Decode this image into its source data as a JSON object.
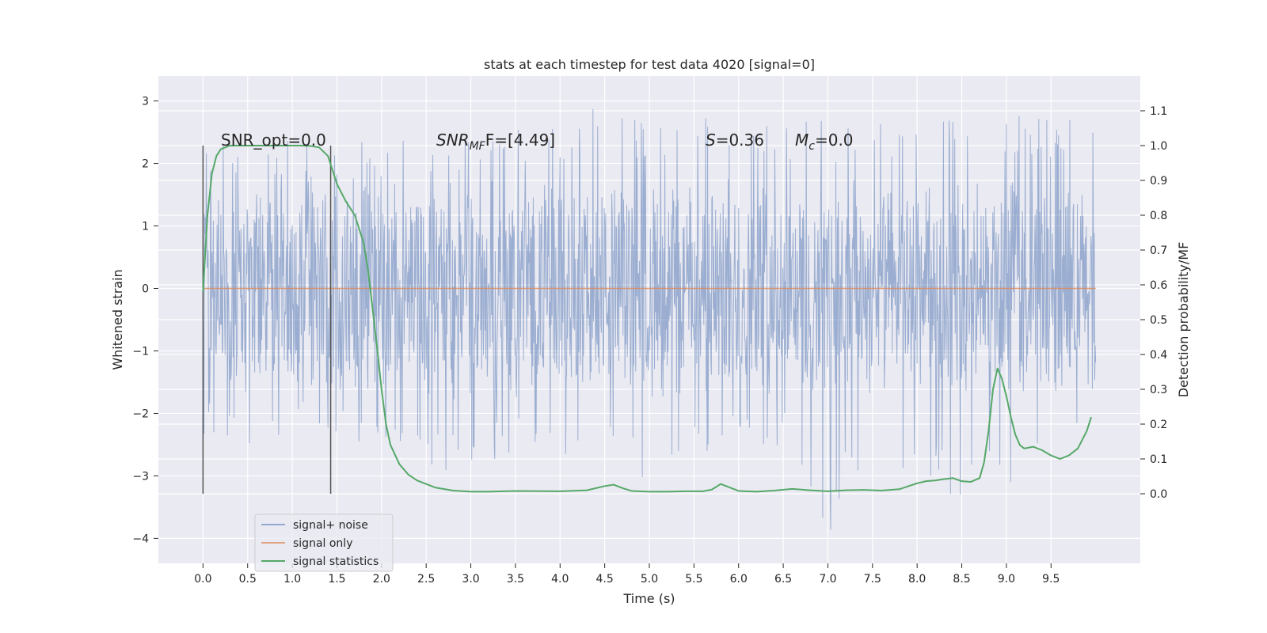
{
  "chart_data": {
    "type": "line",
    "title": "stats at each timestep for test data 4020 [signal=0]",
    "xlabel": "Time (s)",
    "ylabel": "Whitened strain",
    "y2label": "Detection probability/MF",
    "xlim": [
      -0.5,
      10.5
    ],
    "ylim": [
      -4.4,
      3.4
    ],
    "y2lim": [
      -0.2,
      1.2
    ],
    "x_ticks": [
      0.0,
      0.5,
      1.0,
      1.5,
      2.0,
      2.5,
      3.0,
      3.5,
      4.0,
      4.5,
      5.0,
      5.5,
      6.0,
      6.5,
      7.0,
      7.5,
      8.0,
      8.5,
      9.0,
      9.5
    ],
    "x_tick_labels": [
      "0.0",
      "0.5",
      "1.0",
      "1.5",
      "2.0",
      "2.5",
      "3.0",
      "3.5",
      "4.0",
      "4.5",
      "5.0",
      "5.5",
      "6.0",
      "6.5",
      "7.0",
      "7.5",
      "8.0",
      "8.5",
      "9.0",
      "9.5"
    ],
    "y_ticks": [
      3,
      2,
      1,
      0,
      -1,
      -2,
      -3,
      -4
    ],
    "y_tick_labels": [
      "3",
      "2",
      "1",
      "0",
      "−1",
      "−2",
      "−3",
      "−4"
    ],
    "y2_ticks": [
      1.1,
      1.0,
      0.9,
      0.8,
      0.7,
      0.6,
      0.5,
      0.4,
      0.3,
      0.2,
      0.1,
      0.0
    ],
    "y2_tick_labels": [
      "1.1",
      "1.0",
      "0.9",
      "0.8",
      "0.7",
      "0.6",
      "0.5",
      "0.4",
      "0.3",
      "0.2",
      "0.1",
      "0.0"
    ],
    "grid": true,
    "legend_position": "lower-left",
    "annotations": {
      "snr_opt": "SNR_opt=0.0",
      "snr_mf_main": "SNR",
      "snr_mf_sub": "MF",
      "snr_mf_rest": "F=[4.49]",
      "s_main": "S",
      "s_rest": "=0.36",
      "mc_main": "M",
      "mc_sub": "c",
      "mc_rest": "=0.0"
    },
    "markers": {
      "x": [
        0.0,
        1.43
      ],
      "y2_range": [
        0.0,
        1.0
      ]
    },
    "series": [
      {
        "name": "signal+ noise",
        "color": "#4c72b0",
        "x_range": [
          0.0,
          10.0
        ],
        "envelope": {
          "x": [
            0.0,
            0.5,
            1.0,
            1.5,
            2.0,
            2.5,
            3.0,
            3.5,
            4.0,
            4.5,
            5.0,
            5.5,
            6.0,
            6.5,
            7.0,
            7.5,
            8.0,
            8.5,
            9.0,
            9.5,
            10.0
          ],
          "upper": [
            2.3,
            2.3,
            2.4,
            2.3,
            2.4,
            2.5,
            2.5,
            2.6,
            2.6,
            3.1,
            2.6,
            2.7,
            3.0,
            2.7,
            2.7,
            2.6,
            3.0,
            2.8,
            2.8,
            2.7,
            2.8
          ],
          "lower": [
            -2.4,
            -2.5,
            -2.3,
            -2.4,
            -2.6,
            -3.0,
            -2.9,
            -2.6,
            -2.7,
            -2.8,
            -3.3,
            -2.7,
            -2.6,
            -2.6,
            -4.0,
            -2.5,
            -3.2,
            -3.4,
            -3.3,
            -2.6,
            -2.4
          ],
          "core": 1.2
        }
      },
      {
        "name": "signal only",
        "color": "#dd8452",
        "x": [
          0.0,
          10.0
        ],
        "y": [
          0.0,
          0.0
        ]
      },
      {
        "name": "signal statistics",
        "color": "#55a868",
        "axis": "right",
        "x": [
          0.0,
          0.05,
          0.1,
          0.15,
          0.2,
          0.3,
          0.4,
          0.6,
          0.8,
          1.0,
          1.1,
          1.2,
          1.3,
          1.4,
          1.5,
          1.6,
          1.7,
          1.8,
          1.85,
          1.9,
          1.95,
          2.0,
          2.05,
          2.1,
          2.2,
          2.3,
          2.4,
          2.6,
          2.8,
          3.0,
          3.2,
          3.5,
          4.0,
          4.3,
          4.5,
          4.6,
          4.7,
          4.8,
          5.0,
          5.2,
          5.4,
          5.6,
          5.7,
          5.8,
          5.9,
          6.0,
          6.2,
          6.4,
          6.6,
          6.8,
          7.0,
          7.2,
          7.4,
          7.6,
          7.8,
          8.0,
          8.1,
          8.2,
          8.3,
          8.4,
          8.5,
          8.6,
          8.7,
          8.75,
          8.8,
          8.85,
          8.9,
          8.95,
          9.0,
          9.05,
          9.1,
          9.15,
          9.2,
          9.3,
          9.4,
          9.5,
          9.6,
          9.7,
          9.8,
          9.9,
          9.95
        ],
        "y": [
          0.58,
          0.8,
          0.92,
          0.97,
          0.99,
          1.0,
          1.0,
          1.0,
          1.0,
          1.0,
          1.0,
          0.999,
          0.995,
          0.97,
          0.89,
          0.84,
          0.8,
          0.72,
          0.64,
          0.53,
          0.42,
          0.3,
          0.2,
          0.14,
          0.085,
          0.055,
          0.038,
          0.018,
          0.009,
          0.006,
          0.006,
          0.008,
          0.007,
          0.01,
          0.022,
          0.026,
          0.016,
          0.008,
          0.006,
          0.006,
          0.007,
          0.007,
          0.012,
          0.028,
          0.018,
          0.008,
          0.006,
          0.009,
          0.014,
          0.01,
          0.007,
          0.01,
          0.011,
          0.009,
          0.013,
          0.03,
          0.036,
          0.038,
          0.042,
          0.045,
          0.036,
          0.034,
          0.045,
          0.09,
          0.18,
          0.3,
          0.36,
          0.33,
          0.28,
          0.22,
          0.17,
          0.14,
          0.13,
          0.135,
          0.125,
          0.11,
          0.1,
          0.11,
          0.13,
          0.18,
          0.22
        ]
      }
    ]
  }
}
